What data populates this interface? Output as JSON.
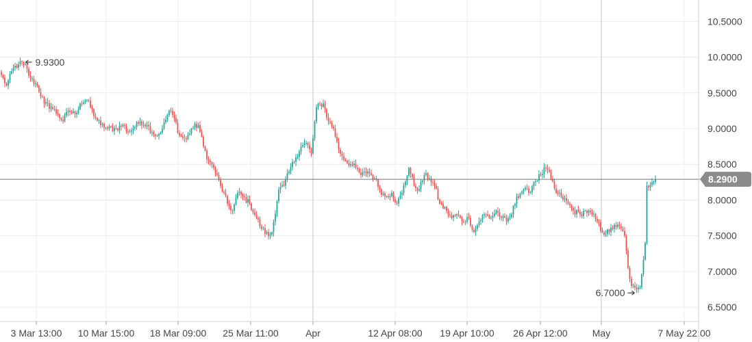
{
  "chart_data": {
    "type": "candlestick",
    "title": "",
    "xlabel": "",
    "ylabel": "",
    "ylim": [
      6.3,
      10.8
    ],
    "y_ticks": [
      "10.5000",
      "10.0000",
      "9.5000",
      "9.0000",
      "8.5000",
      "8.0000",
      "7.5000",
      "7.0000",
      "6.5000"
    ],
    "x_ticks": [
      "3 Mar 13:00",
      "10 Mar 15:00",
      "18 Mar 09:00",
      "25 Mar 11:00",
      "Apr",
      "12 Apr 08:00",
      "19 Apr 10:00",
      "26 Apr 12:00",
      "May",
      "7 May 22:00"
    ],
    "grid": true,
    "colors": {
      "up": "#26a69a",
      "down": "#ef5350",
      "grid": "#ececec",
      "major_grid": "#d6d6d6",
      "current_line": "#757575",
      "badge": "#8c8c8c"
    },
    "current_price": {
      "value": 8.29,
      "label": "8.2900"
    },
    "annotations": {
      "high": {
        "value": 9.93,
        "label": "9.9300"
      },
      "low": {
        "value": 6.7,
        "label": "6.7000"
      }
    },
    "path": [
      [
        0,
        9.75
      ],
      [
        3,
        9.6
      ],
      [
        7,
        9.85
      ],
      [
        10,
        9.9
      ],
      [
        13,
        9.93
      ],
      [
        17,
        9.7
      ],
      [
        21,
        9.6
      ],
      [
        25,
        9.35
      ],
      [
        29,
        9.3
      ],
      [
        33,
        9.2
      ],
      [
        36,
        9.1
      ],
      [
        39,
        9.25
      ],
      [
        43,
        9.2
      ],
      [
        46,
        9.35
      ],
      [
        50,
        9.4
      ],
      [
        55,
        9.15
      ],
      [
        58,
        9.05
      ],
      [
        62,
        9.0
      ],
      [
        67,
        9.0
      ],
      [
        71,
        9.05
      ],
      [
        74,
        8.95
      ],
      [
        77,
        9.0
      ],
      [
        81,
        9.1
      ],
      [
        85,
        9.05
      ],
      [
        88,
        8.95
      ],
      [
        91,
        8.9
      ],
      [
        94,
        9.0
      ],
      [
        98,
        9.25
      ],
      [
        101,
        9.15
      ],
      [
        104,
        8.9
      ],
      [
        108,
        8.85
      ],
      [
        111,
        9.0
      ],
      [
        115,
        9.05
      ],
      [
        118,
        8.75
      ],
      [
        121,
        8.55
      ],
      [
        124,
        8.45
      ],
      [
        128,
        8.2
      ],
      [
        132,
        7.95
      ],
      [
        135,
        7.85
      ],
      [
        138,
        8.1
      ],
      [
        141,
        8.05
      ],
      [
        145,
        7.95
      ],
      [
        149,
        7.75
      ],
      [
        152,
        7.6
      ],
      [
        156,
        7.5
      ],
      [
        158,
        7.55
      ],
      [
        162,
        8.15
      ],
      [
        165,
        8.2
      ],
      [
        168,
        8.4
      ],
      [
        172,
        8.6
      ],
      [
        175,
        8.75
      ],
      [
        178,
        8.8
      ],
      [
        181,
        8.65
      ],
      [
        184,
        9.3
      ],
      [
        188,
        9.35
      ],
      [
        191,
        9.1
      ],
      [
        194,
        9.0
      ],
      [
        197,
        8.7
      ],
      [
        201,
        8.55
      ],
      [
        204,
        8.5
      ],
      [
        207,
        8.45
      ],
      [
        210,
        8.35
      ],
      [
        214,
        8.4
      ],
      [
        218,
        8.3
      ],
      [
        221,
        8.15
      ],
      [
        224,
        8.05
      ],
      [
        228,
        8.1
      ],
      [
        231,
        7.95
      ],
      [
        234,
        8.1
      ],
      [
        238,
        8.45
      ],
      [
        241,
        8.2
      ],
      [
        244,
        8.15
      ],
      [
        247,
        8.35
      ],
      [
        250,
        8.3
      ],
      [
        253,
        8.2
      ],
      [
        256,
        7.95
      ],
      [
        260,
        7.85
      ],
      [
        263,
        7.75
      ],
      [
        266,
        7.8
      ],
      [
        269,
        7.7
      ],
      [
        273,
        7.75
      ],
      [
        276,
        7.55
      ],
      [
        279,
        7.7
      ],
      [
        282,
        7.8
      ],
      [
        286,
        7.75
      ],
      [
        289,
        7.85
      ],
      [
        292,
        7.75
      ],
      [
        295,
        7.7
      ],
      [
        298,
        7.8
      ],
      [
        301,
        8.05
      ],
      [
        305,
        8.15
      ],
      [
        308,
        8.1
      ],
      [
        311,
        8.25
      ],
      [
        315,
        8.35
      ],
      [
        318,
        8.45
      ],
      [
        321,
        8.3
      ],
      [
        324,
        8.1
      ],
      [
        327,
        8.05
      ],
      [
        331,
        7.95
      ],
      [
        334,
        7.85
      ],
      [
        338,
        7.8
      ],
      [
        341,
        7.85
      ],
      [
        345,
        7.8
      ],
      [
        348,
        7.7
      ],
      [
        351,
        7.55
      ],
      [
        355,
        7.55
      ],
      [
        358,
        7.65
      ],
      [
        362,
        7.6
      ],
      [
        364,
        7.5
      ],
      [
        366,
        7.05
      ],
      [
        368,
        6.8
      ],
      [
        371,
        6.72
      ],
      [
        373,
        6.78
      ],
      [
        376,
        7.4
      ],
      [
        377,
        8.2
      ],
      [
        380,
        8.25
      ],
      [
        382,
        8.29
      ]
    ]
  }
}
